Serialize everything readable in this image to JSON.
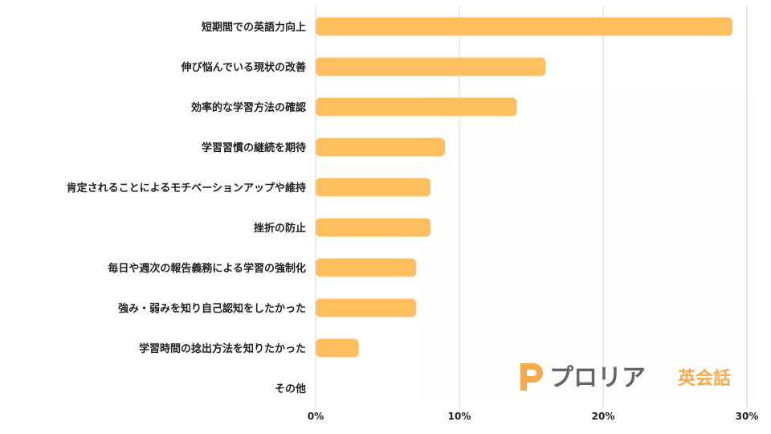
{
  "chart_data": {
    "type": "bar",
    "orientation": "horizontal",
    "categories": [
      "短期間での英語力向上",
      "伸び悩んでいる現状の改善",
      "効率的な学習方法の確認",
      "学習習慣の継続を期待",
      "肯定されることによるモチベーションアップや維持",
      "挫折の防止",
      "毎日や週次の報告義務による学習の強制化",
      "強み・弱みを知り自己認知をしたかった",
      "学習時間の捻出方法を知りたかった",
      "その他"
    ],
    "values": [
      29,
      16,
      14,
      9,
      8,
      8,
      7,
      7,
      3,
      0
    ],
    "xlim": [
      0,
      30
    ],
    "ticks": [
      0,
      10,
      20,
      30
    ],
    "tick_labels": [
      "0%",
      "10%",
      "20%",
      "30%"
    ],
    "bar_color": "#FFBF5E",
    "grid": true,
    "legend": "none"
  },
  "logo": {
    "brand": "プロリア",
    "suffix": "英会話",
    "brand_color": "#555555",
    "accent_color": "#F5A13A"
  }
}
